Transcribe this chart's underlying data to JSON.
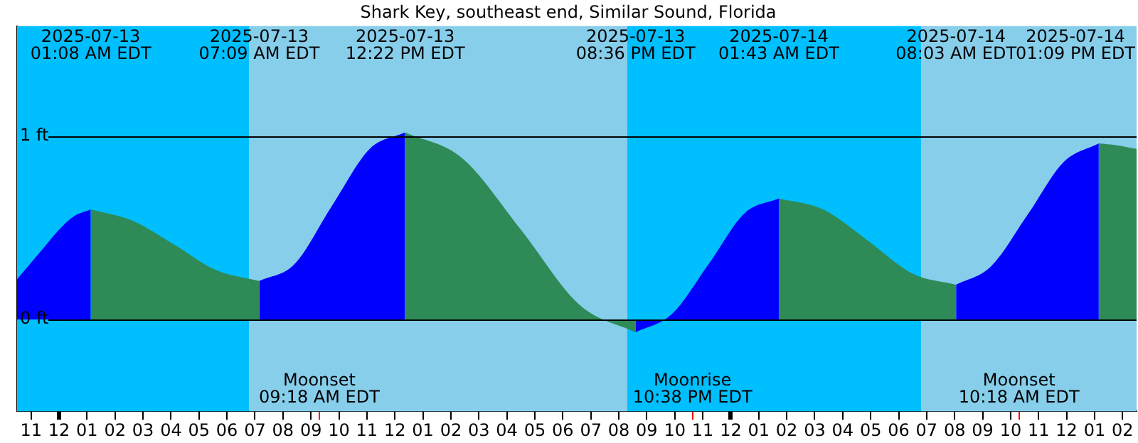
{
  "chart_data": {
    "type": "area",
    "title": "Shark Key, southeast end, Similar Sound, Florida",
    "x": [
      "2025-07-12T22:30",
      "2025-07-12T23:30",
      "2025-07-13T00:00",
      "2025-07-13T00:30",
      "2025-07-13T01:08",
      "2025-07-13T02:36",
      "2025-07-13T04:06",
      "2025-07-13T05:36",
      "2025-07-13T07:09",
      "2025-07-13T08:24",
      "2025-07-13T09:45",
      "2025-07-13T11:06",
      "2025-07-13T12:22",
      "2025-07-13T14:24",
      "2025-07-13T16:30",
      "2025-07-13T18:36",
      "2025-07-13T20:36",
      "2025-07-13T21:54",
      "2025-07-13T23:12",
      "2025-07-14T00:30",
      "2025-07-14T01:43",
      "2025-07-14T03:18",
      "2025-07-14T04:54",
      "2025-07-14T06:30",
      "2025-07-14T08:03",
      "2025-07-14T09:18",
      "2025-07-14T10:36",
      "2025-07-14T11:54",
      "2025-07-14T13:09",
      "2025-07-14T13:48",
      "2025-07-14T14:30"
    ],
    "series": [
      {
        "color": "#0000ff",
        "values": [
          0.22,
          0.4,
          0.49,
          0.56,
          0.6,
          null,
          null,
          null,
          0.21,
          0.3,
          0.62,
          0.93,
          1.02,
          null,
          null,
          null,
          -0.07,
          0.03,
          0.3,
          0.58,
          0.66,
          null,
          null,
          null,
          0.19,
          0.29,
          0.57,
          0.86,
          0.96,
          null,
          null
        ]
      },
      {
        "color": "#2e8b57",
        "values": [
          null,
          null,
          null,
          null,
          0.6,
          0.54,
          0.41,
          0.27,
          0.21,
          null,
          null,
          null,
          1.02,
          0.88,
          0.49,
          0.08,
          -0.07,
          null,
          null,
          null,
          0.66,
          0.6,
          0.43,
          0.25,
          0.19,
          null,
          null,
          null,
          0.96,
          0.95,
          0.93
        ]
      }
    ],
    "xlim": [
      "2025-07-12T22:30",
      "2025-07-14T14:30"
    ],
    "xticks": [
      {
        "value": "2025-07-12T23:00",
        "label": "11"
      },
      {
        "value": "2025-07-13T00:00",
        "label": "12"
      },
      {
        "value": "2025-07-13T01:00",
        "label": "01"
      },
      {
        "value": "2025-07-13T02:00",
        "label": "02"
      },
      {
        "value": "2025-07-13T03:00",
        "label": "03"
      },
      {
        "value": "2025-07-13T04:00",
        "label": "04"
      },
      {
        "value": "2025-07-13T05:00",
        "label": "05"
      },
      {
        "value": "2025-07-13T06:00",
        "label": "06"
      },
      {
        "value": "2025-07-13T07:00",
        "label": "07"
      },
      {
        "value": "2025-07-13T08:00",
        "label": "08"
      },
      {
        "value": "2025-07-13T09:00",
        "label": "09"
      },
      {
        "value": "2025-07-13T09:18",
        "label": null
      },
      {
        "value": "2025-07-13T10:00",
        "label": "10"
      },
      {
        "value": "2025-07-13T11:00",
        "label": "11"
      },
      {
        "value": "2025-07-13T12:00",
        "label": "12"
      },
      {
        "value": "2025-07-13T13:00",
        "label": "01"
      },
      {
        "value": "2025-07-13T14:00",
        "label": "02"
      },
      {
        "value": "2025-07-13T15:00",
        "label": "03"
      },
      {
        "value": "2025-07-13T16:00",
        "label": "04"
      },
      {
        "value": "2025-07-13T17:00",
        "label": "05"
      },
      {
        "value": "2025-07-13T18:00",
        "label": "06"
      },
      {
        "value": "2025-07-13T19:00",
        "label": "07"
      },
      {
        "value": "2025-07-13T20:00",
        "label": "08"
      },
      {
        "value": "2025-07-13T21:00",
        "label": "09"
      },
      {
        "value": "2025-07-13T22:00",
        "label": "10"
      },
      {
        "value": "2025-07-13T22:38",
        "label": null
      },
      {
        "value": "2025-07-13T23:00",
        "label": "11"
      },
      {
        "value": "2025-07-14T00:00",
        "label": "12"
      },
      {
        "value": "2025-07-14T01:00",
        "label": "01"
      },
      {
        "value": "2025-07-14T02:00",
        "label": "02"
      },
      {
        "value": "2025-07-14T03:00",
        "label": "03"
      },
      {
        "value": "2025-07-14T04:00",
        "label": "04"
      },
      {
        "value": "2025-07-14T05:00",
        "label": "05"
      },
      {
        "value": "2025-07-14T06:00",
        "label": "06"
      },
      {
        "value": "2025-07-14T07:00",
        "label": "07"
      },
      {
        "value": "2025-07-14T08:00",
        "label": "08"
      },
      {
        "value": "2025-07-14T09:00",
        "label": "09"
      },
      {
        "value": "2025-07-14T10:00",
        "label": "10"
      },
      {
        "value": "2025-07-14T10:18",
        "label": null
      },
      {
        "value": "2025-07-14T11:00",
        "label": "11"
      },
      {
        "value": "2025-07-14T12:00",
        "label": "12"
      },
      {
        "value": "2025-07-14T13:00",
        "label": "01"
      },
      {
        "value": "2025-07-14T14:00",
        "label": "02"
      }
    ],
    "ylim": [
      -0.5,
      1.6
    ],
    "yticks": [
      {
        "value": 0,
        "label": "0 ft"
      },
      {
        "value": 1,
        "label": "1 ft"
      }
    ],
    "grid": "y",
    "bands": [
      {
        "axis": "x",
        "from": "2025-07-12T22:30",
        "to": "2025-07-13T06:48",
        "color": "#00bfff"
      },
      {
        "axis": "x",
        "from": "2025-07-13T06:48",
        "to": "2025-07-13T20:18",
        "color": "#87ceeb"
      },
      {
        "axis": "x",
        "from": "2025-07-13T20:18",
        "to": "2025-07-14T06:48",
        "color": "#00bfff"
      },
      {
        "axis": "x",
        "from": "2025-07-14T06:48",
        "to": "2025-07-14T14:30",
        "color": "#87ceeb"
      }
    ],
    "annotations": [
      "2025-07-13\n01:08 AM EDT",
      "2025-07-13\n07:09 AM EDT",
      "2025-07-13\n12:22 PM EDT",
      "2025-07-13\n08:36 PM EDT",
      "2025-07-14\n01:43 AM EDT",
      "2025-07-14\n08:03 AM EDT",
      "2025-07-14\n01:09 PM EDT",
      "Moonset\n09:18 AM EDT",
      "Moonrise\n10:38 PM EDT",
      "Moonset\n10:18 AM EDT"
    ]
  }
}
